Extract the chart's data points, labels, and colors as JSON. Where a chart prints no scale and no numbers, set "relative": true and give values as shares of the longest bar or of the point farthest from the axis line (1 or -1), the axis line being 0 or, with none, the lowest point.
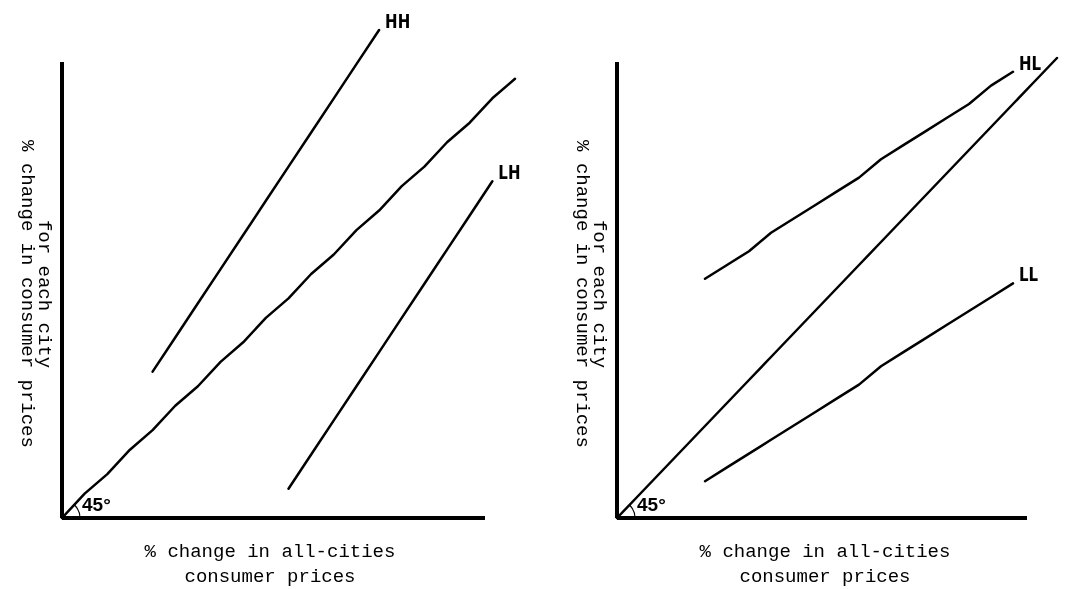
{
  "chart_data": [
    {
      "type": "line",
      "relative": true,
      "xlabel": "% change in all-cities\nconsumer prices",
      "ylabel": "% change in consumer prices\nfor each city",
      "tick_labels": false,
      "annotations": [
        "45°"
      ],
      "categories": [
        null,
        null,
        null,
        null,
        null,
        null,
        null,
        null,
        null,
        null,
        null,
        null,
        null,
        null,
        null,
        null,
        null,
        null,
        null,
        null,
        null
      ],
      "series": [
        {
          "color": "#000000",
          "values": [
            0,
            0.05,
            0.09,
            0.14,
            0.18,
            0.23,
            0.27,
            0.32,
            0.36,
            0.41,
            0.45,
            0.5,
            0.54,
            0.59,
            0.63,
            0.68,
            0.72,
            0.77,
            0.81,
            0.86,
            0.9
          ]
        },
        {
          "name": "HH",
          "color": "#000000",
          "values": [
            null,
            null,
            null,
            null,
            0.3,
            0.37,
            0.44,
            0.51,
            0.58,
            0.65,
            0.72,
            0.79,
            0.86,
            0.93,
            1,
            null,
            null,
            null,
            null,
            null,
            null
          ]
        },
        {
          "name": "LH",
          "color": "#000000",
          "values": [
            null,
            null,
            null,
            null,
            null,
            null,
            null,
            null,
            null,
            null,
            0.06,
            0.13,
            0.2,
            0.27,
            0.34,
            0.41,
            0.48,
            0.55,
            0.62,
            0.69,
            null
          ]
        }
      ]
    },
    {
      "type": "line",
      "relative": true,
      "xlabel": "% change in all-cities\nconsumer prices",
      "ylabel": "% change in consumer prices\nfor each city",
      "tick_labels": false,
      "annotations": [
        "45°"
      ],
      "categories": [
        null,
        null,
        null,
        null,
        null,
        null,
        null,
        null,
        null,
        null,
        null,
        null,
        null,
        null,
        null,
        null,
        null,
        null,
        null,
        null,
        null
      ],
      "series": [
        {
          "color": "#000000",
          "values": [
            0,
            0.05,
            0.1,
            0.15,
            0.2,
            0.25,
            0.3,
            0.35,
            0.4,
            0.45,
            0.5,
            0.55,
            0.6,
            0.65,
            0.7,
            0.75,
            0.8,
            0.85,
            0.9,
            0.95,
            1
          ]
        },
        {
          "name": "HL",
          "color": "#000000",
          "values": [
            null,
            null,
            null,
            null,
            0.52,
            0.55,
            0.58,
            0.62,
            0.65,
            0.68,
            0.71,
            0.74,
            0.78,
            0.81,
            0.84,
            0.87,
            0.9,
            0.94,
            0.97,
            null,
            null
          ]
        },
        {
          "name": "LL",
          "color": "#000000",
          "values": [
            null,
            null,
            null,
            null,
            0.08,
            0.11,
            0.14,
            0.17,
            0.2,
            0.23,
            0.26,
            0.29,
            0.33,
            0.36,
            0.39,
            0.42,
            0.45,
            0.48,
            0.51,
            null,
            null
          ]
        }
      ]
    }
  ]
}
